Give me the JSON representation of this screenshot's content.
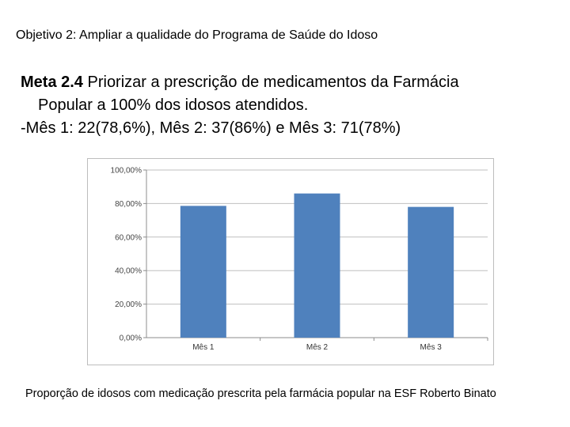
{
  "slide": {
    "objective": "Objetivo 2: Ampliar a qualidade do Programa de Saúde do Idoso",
    "meta_title": "Meta 2.4",
    "meta_text_line1": " Priorizar a prescrição de medicamentos da Farmácia",
    "meta_text_line2": "Popular a 100% dos idosos atendidos.",
    "meta_results": "-Mês 1: 22(78,6%), Mês 2: 37(86%) e Mês 3: 71(78%)",
    "caption": "Proporção de idosos com medicação prescrita pela farmácia popular na ESF Roberto Binato"
  },
  "chart_data": {
    "type": "bar",
    "categories": [
      "Mês 1",
      "Mês 2",
      "Mês 3"
    ],
    "values": [
      78.6,
      86,
      78
    ],
    "ylim": [
      0,
      100
    ],
    "yticks": [
      0,
      20,
      40,
      60,
      80,
      100
    ],
    "ytick_labels": [
      "0,00%",
      "20,00%",
      "40,00%",
      "60,00%",
      "80,00%",
      "100,00%"
    ],
    "grid": "horizontal",
    "legend": "none",
    "bar_color": "#4f81bd"
  }
}
